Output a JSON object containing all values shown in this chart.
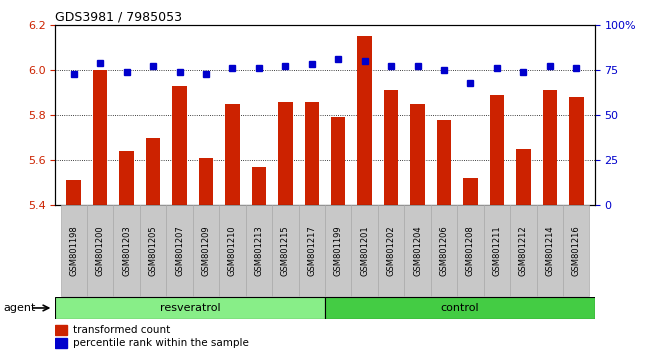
{
  "title": "GDS3981 / 7985053",
  "samples": [
    "GSM801198",
    "GSM801200",
    "GSM801203",
    "GSM801205",
    "GSM801207",
    "GSM801209",
    "GSM801210",
    "GSM801213",
    "GSM801215",
    "GSM801217",
    "GSM801199",
    "GSM801201",
    "GSM801202",
    "GSM801204",
    "GSM801206",
    "GSM801208",
    "GSM801211",
    "GSM801212",
    "GSM801214",
    "GSM801216"
  ],
  "transformed_count": [
    5.51,
    6.0,
    5.64,
    5.7,
    5.93,
    5.61,
    5.85,
    5.57,
    5.86,
    5.86,
    5.79,
    6.15,
    5.91,
    5.85,
    5.78,
    5.52,
    5.89,
    5.65,
    5.91,
    5.88
  ],
  "percentile_rank": [
    73,
    79,
    74,
    77,
    74,
    73,
    76,
    76,
    77,
    78,
    81,
    80,
    77,
    77,
    75,
    68,
    76,
    74,
    77,
    76
  ],
  "resveratrol_count": 10,
  "control_count": 10,
  "ylim_left": [
    5.4,
    6.2
  ],
  "ylim_right": [
    0,
    100
  ],
  "yticks_left": [
    5.4,
    5.6,
    5.8,
    6.0,
    6.2
  ],
  "yticks_right": [
    0,
    25,
    50,
    75,
    100
  ],
  "bar_color": "#cc2200",
  "dot_color": "#0000cc",
  "label_bg": "#c8c8c8",
  "resveratrol_color": "#88ee88",
  "control_color": "#44cc44",
  "agent_label": "agent",
  "resveratrol_label": "resveratrol",
  "control_label": "control",
  "legend_bar_label": "transformed count",
  "legend_dot_label": "percentile rank within the sample"
}
